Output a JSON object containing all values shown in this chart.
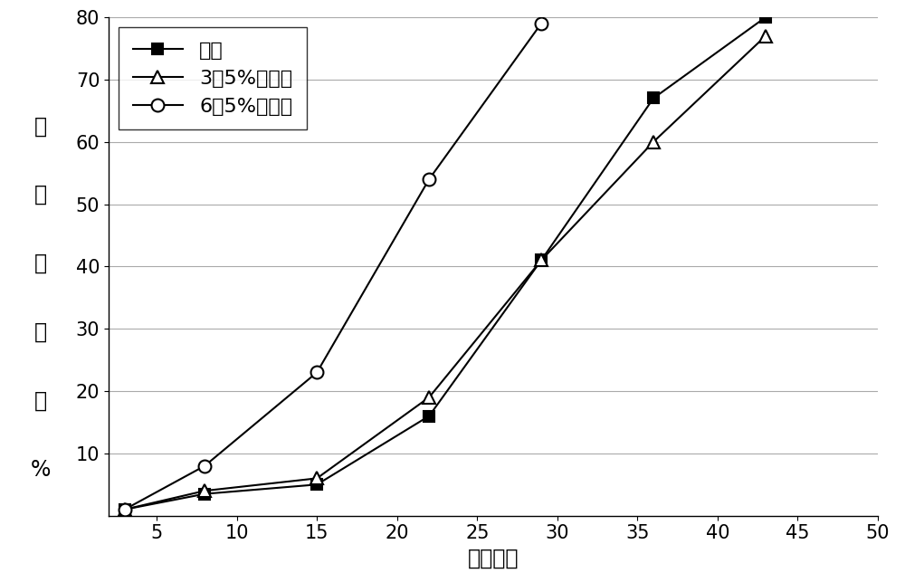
{
  "series": [
    {
      "label": "参比",
      "x": [
        3,
        8,
        15,
        22,
        29,
        36,
        43
      ],
      "y": [
        1,
        3.5,
        5,
        16,
        41,
        67,
        80
      ],
      "color": "black",
      "marker": "s",
      "markersize": 9,
      "markerfacecolor": "black",
      "linewidth": 1.5,
      "linestyle": "-"
    },
    {
      "label": "3．5%滑石粉",
      "x": [
        3,
        8,
        15,
        22,
        29,
        36,
        43
      ],
      "y": [
        1,
        4,
        6,
        19,
        41,
        60,
        77
      ],
      "color": "black",
      "marker": "^",
      "markersize": 10,
      "markerfacecolor": "white",
      "linewidth": 1.5,
      "linestyle": "-"
    },
    {
      "label": "6．5%滑石粉",
      "x": [
        3,
        8,
        15,
        22,
        29
      ],
      "y": [
        1,
        8,
        23,
        54,
        79
      ],
      "color": "black",
      "marker": "o",
      "markersize": 10,
      "markerfacecolor": "white",
      "linewidth": 1.5,
      "linestyle": "-"
    }
  ],
  "xlabel": "时间，天",
  "ylabel_chars": [
    "累",
    "积",
    "溶",
    "出",
    "率",
    "%"
  ],
  "xlim": [
    2,
    50
  ],
  "ylim": [
    0,
    80
  ],
  "xticks": [
    5,
    10,
    15,
    20,
    25,
    30,
    35,
    40,
    45,
    50
  ],
  "yticks": [
    10,
    20,
    30,
    40,
    50,
    60,
    70,
    80
  ],
  "grid_color": "#aaaaaa",
  "background_color": "white",
  "legend_fontsize": 16,
  "axis_fontsize": 17,
  "tick_fontsize": 15
}
